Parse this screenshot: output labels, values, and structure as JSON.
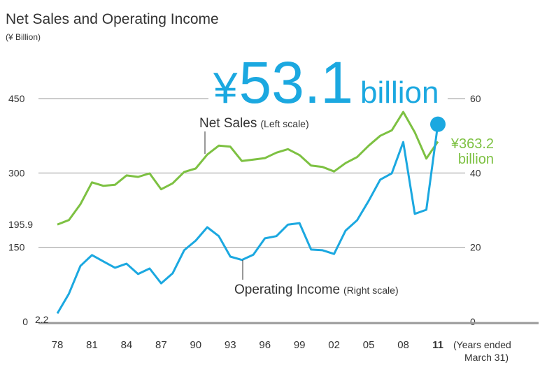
{
  "chart_data": {
    "type": "line",
    "title": "Net Sales and Operating Income",
    "subtitle": "(¥ Billion)",
    "xlabel": "(Years ended March 31)",
    "categories": [
      "78",
      null,
      null,
      "81",
      null,
      null,
      "84",
      null,
      null,
      "87",
      null,
      null,
      "90",
      null,
      null,
      "93",
      null,
      null,
      "96",
      null,
      null,
      "99",
      null,
      null,
      "02",
      null,
      null,
      "05",
      null,
      null,
      "08",
      null,
      null,
      "11"
    ],
    "series": [
      {
        "name": "Net Sales",
        "scale_label": "(Left scale)",
        "color": "#7dc142",
        "axis": "y",
        "values": [
          195.9,
          205,
          237,
          281,
          274,
          276,
          295,
          292,
          299,
          267,
          279,
          302,
          309,
          337,
          355,
          353,
          324,
          327,
          330,
          341,
          348,
          336,
          315,
          312,
          303,
          320,
          332,
          355,
          375,
          386,
          423,
          382,
          329,
          363.2
        ],
        "value_labels": [
          "195.9",
          null,
          null,
          null,
          null,
          null,
          null,
          null,
          null,
          null,
          null,
          null,
          null,
          null,
          null,
          null,
          null,
          null,
          null,
          null,
          null,
          null,
          null,
          null,
          null,
          null,
          null,
          null,
          null,
          null,
          null,
          null,
          null,
          "¥363.2 billion"
        ]
      },
      {
        "name": "Operating Income",
        "scale_label": "(Right scale)",
        "color": "#1ba8e0",
        "axis": "y2",
        "values": [
          2.2,
          7.5,
          15,
          17.9,
          16.2,
          14.5,
          15.6,
          12.8,
          14.3,
          10.3,
          13,
          19.2,
          21.8,
          25.4,
          23,
          17.5,
          16.6,
          18,
          22.4,
          23,
          26.1,
          26.5,
          19.4,
          19.2,
          18.2,
          24.5,
          27.3,
          32.5,
          38.2,
          39.9,
          48.3,
          29,
          30.1,
          53.1
        ],
        "value_labels": [
          "2.2",
          null,
          null,
          null,
          null,
          null,
          null,
          null,
          null,
          null,
          null,
          null,
          null,
          null,
          null,
          null,
          null,
          null,
          null,
          null,
          null,
          null,
          null,
          null,
          null,
          null,
          null,
          null,
          null,
          null,
          null,
          null,
          null,
          "¥53.1 billion"
        ]
      }
    ],
    "ylim": [
      0,
      450
    ],
    "yticks": [
      0,
      150,
      300,
      450
    ],
    "y2lim": [
      0,
      60
    ],
    "y2ticks": [
      0,
      20,
      40,
      60
    ],
    "grid": true
  }
}
